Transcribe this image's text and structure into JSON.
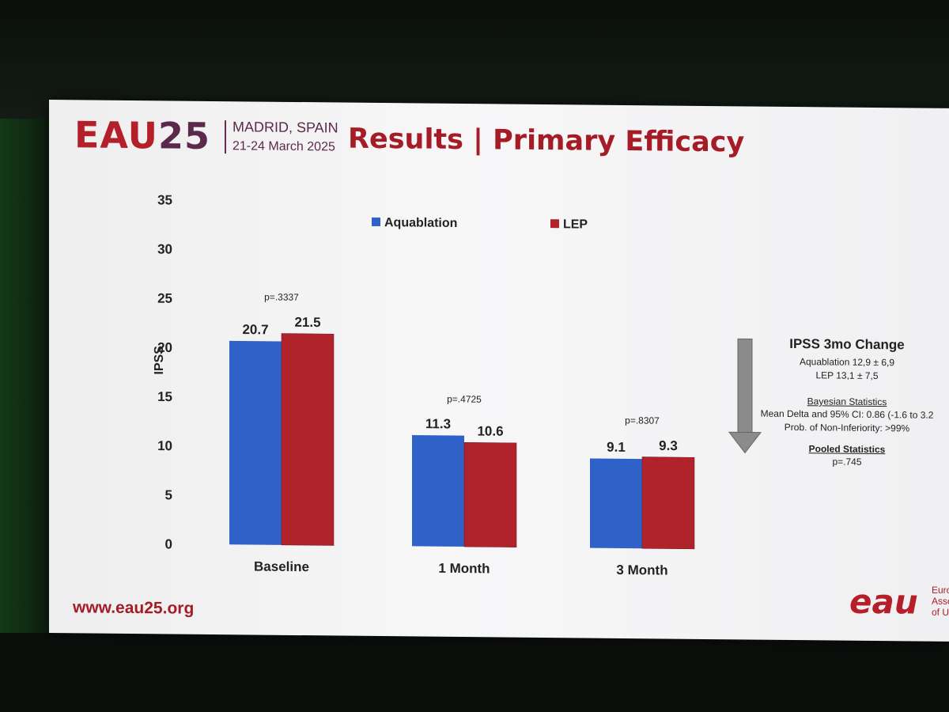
{
  "header": {
    "logo_eau": "EAU",
    "logo_year": "25",
    "place": "MADRID, SPAIN",
    "date": "21-24 March 2025",
    "title": "Results | Primary Efficacy"
  },
  "chart_data": {
    "type": "bar",
    "categories": [
      "Baseline",
      "1 Month",
      "3 Month"
    ],
    "series": [
      {
        "name": "Aquablation",
        "values": [
          20.7,
          11.3,
          9.1
        ],
        "color": "#2f62c8"
      },
      {
        "name": "LEP",
        "values": [
          21.5,
          10.6,
          9.3
        ],
        "color": "#b0232b"
      }
    ],
    "value_labels": [
      [
        "20.7",
        "11.3",
        "9.1"
      ],
      [
        "21.5",
        "10.6",
        "9.3"
      ]
    ],
    "p_values": [
      "p=.3337",
      "p=.4725",
      "p=.8307"
    ],
    "ylabel": "IPSS",
    "ylim": [
      0,
      35
    ],
    "yticks": [
      "0",
      "5",
      "10",
      "15",
      "20",
      "25",
      "30",
      "35"
    ],
    "grid": false,
    "legend_position": "top"
  },
  "summary": {
    "title": "IPSS 3mo Change",
    "aquablation": "Aquablation 12,9 ± 6,9",
    "lep": "LEP 13,1 ± 7,5",
    "bayesian_heading": "Bayesian Statistics",
    "mean_delta": "Mean Delta and 95% CI: 0.86 (-1.6 to 3.2",
    "prob_noninferiority": "Prob. of Non-Inferiority: >99%",
    "pooled_heading": "Pooled Statistics",
    "pooled_p": "p=.745"
  },
  "footer": {
    "url": "www.eau25.org",
    "logo_text": "eau",
    "logo_sub": [
      "Euro",
      "Asso",
      "of U"
    ]
  }
}
